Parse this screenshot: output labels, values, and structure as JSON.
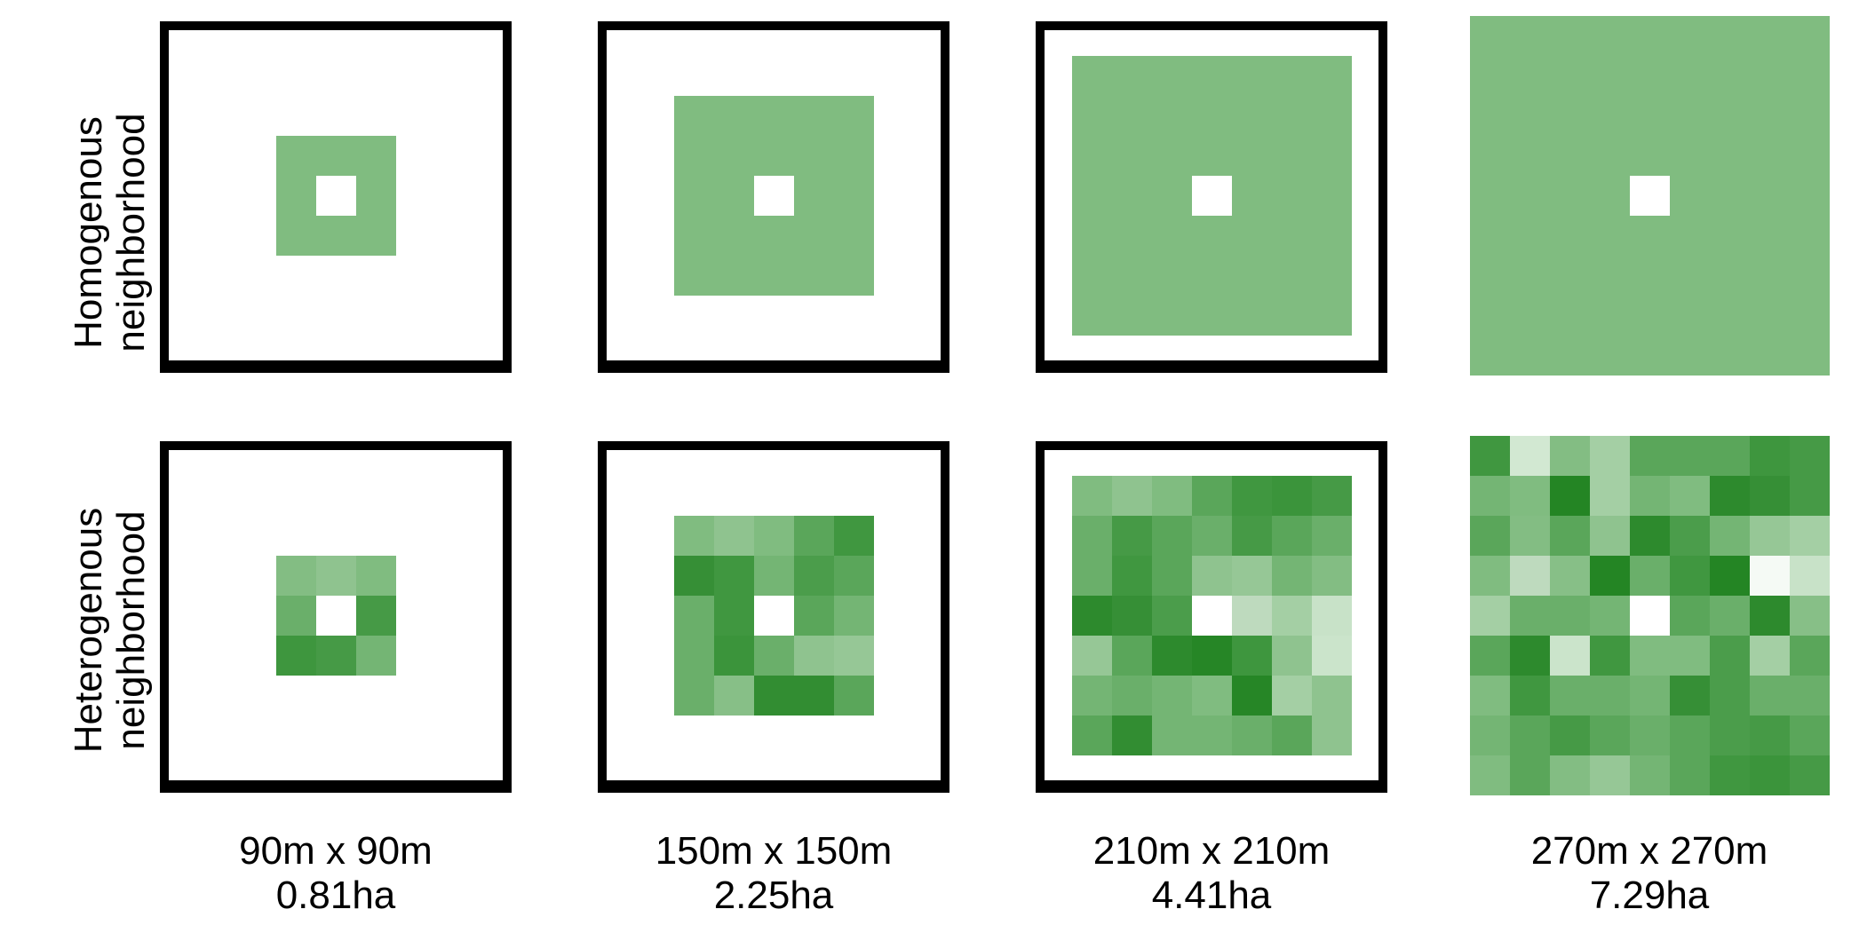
{
  "rows": [
    {
      "label_line1": "Homogenous",
      "label_line2": "neighborhood"
    },
    {
      "label_line1": "Heterogenous",
      "label_line2": "neighborhood"
    }
  ],
  "columns": [
    {
      "size_label": "90m x 90m",
      "area_label": "0.81ha",
      "grid": 3
    },
    {
      "size_label": "150m x 150m",
      "area_label": "2.25ha",
      "grid": 5
    },
    {
      "size_label": "210m x 210m",
      "area_label": "4.41ha",
      "grid": 7
    },
    {
      "size_label": "270m x 270m",
      "area_label": "7.29ha",
      "grid": 9
    }
  ],
  "colors": {
    "homogeneous_fill": "#80bc80",
    "center_cell": "#ffffff",
    "frame": "#000000"
  },
  "heterogeneous_grids": [
    [
      [
        "#83bd83",
        "#8fc38f",
        "#80bc80"
      ],
      [
        "#6aaf6a",
        "#ffffff",
        "#469a46"
      ],
      [
        "#3e963e",
        "#469a46",
        "#74b574"
      ]
    ],
    [
      [
        "#80bc80",
        "#8fc38f",
        "#80bc80",
        "#5aa65a",
        "#409740"
      ],
      [
        "#368f36",
        "#409740",
        "#74b574",
        "#4b9d4b",
        "#5aa65a"
      ],
      [
        "#6aaf6a",
        "#409740",
        "#ffffff",
        "#5aa65a",
        "#74b574"
      ],
      [
        "#6aaf6a",
        "#3b943b",
        "#6aaf6a",
        "#8fc38f",
        "#96c796"
      ],
      [
        "#6aaf6a",
        "#87bf87",
        "#328d32",
        "#328d32",
        "#5aa65a"
      ]
    ],
    [
      [
        "#80bc80",
        "#8fc38f",
        "#80bc80",
        "#5aa65a",
        "#409740",
        "#3b943b",
        "#469a46"
      ],
      [
        "#6aaf6a",
        "#469a46",
        "#5aa65a",
        "#6aaf6a",
        "#469a46",
        "#5aa65a",
        "#6aaf6a"
      ],
      [
        "#6aaf6a",
        "#409740",
        "#5aa65a",
        "#8fc38f",
        "#96c796",
        "#74b574",
        "#83bd83"
      ],
      [
        "#2d8a2d",
        "#368f36",
        "#4b9d4b",
        "#ffffff",
        "#bedabe",
        "#a4cfa4",
        "#c8e2c8"
      ],
      [
        "#96c796",
        "#5aa65a",
        "#2d8a2d",
        "#268626",
        "#3e963e",
        "#8fc38f",
        "#cbe4cb"
      ],
      [
        "#74b574",
        "#6aaf6a",
        "#74b574",
        "#80bc80",
        "#268626",
        "#a4cfa4",
        "#8fc38f"
      ],
      [
        "#5aa65a",
        "#328d32",
        "#74b574",
        "#74b574",
        "#6aaf6a",
        "#5aa65a",
        "#8fc38f"
      ]
    ],
    [
      [
        "#409740",
        "#d2e8d2",
        "#83bd83",
        "#a4cfa4",
        "#5aa65a",
        "#5aa65a",
        "#5aa65a",
        "#3e963e",
        "#469a46"
      ],
      [
        "#74b574",
        "#80bc80",
        "#248524",
        "#a4cfa4",
        "#74b574",
        "#80bc80",
        "#2d8a2d",
        "#368f36",
        "#469a46"
      ],
      [
        "#5aa65a",
        "#83bd83",
        "#5aa65a",
        "#8fc38f",
        "#2d8a2d",
        "#4b9d4b",
        "#74b574",
        "#96c796",
        "#a4cfa4"
      ],
      [
        "#80bc80",
        "#bedabe",
        "#87bf87",
        "#248524",
        "#6aaf6a",
        "#409740",
        "#248524",
        "#f5faf5",
        "#c8e2c8"
      ],
      [
        "#a4cfa4",
        "#6aaf6a",
        "#6aaf6a",
        "#74b574",
        "#ffffff",
        "#5aa65a",
        "#6aaf6a",
        "#2d8a2d",
        "#87bf87"
      ],
      [
        "#5aa65a",
        "#2d8a2d",
        "#cbe4cb",
        "#409740",
        "#80bc80",
        "#80bc80",
        "#4b9d4b",
        "#a4cfa4",
        "#5aa65a"
      ],
      [
        "#80bc80",
        "#409740",
        "#6aaf6a",
        "#6aaf6a",
        "#74b574",
        "#368f36",
        "#4b9d4b",
        "#6aaf6a",
        "#6aaf6a"
      ],
      [
        "#74b574",
        "#5aa65a",
        "#469a46",
        "#5aa65a",
        "#6aaf6a",
        "#5aa65a",
        "#4b9d4b",
        "#469a46",
        "#5aa65a"
      ],
      [
        "#80bc80",
        "#5aa65a",
        "#83bd83",
        "#96c796",
        "#74b574",
        "#5aa65a",
        "#409740",
        "#3b943b",
        "#469a46"
      ]
    ]
  ]
}
